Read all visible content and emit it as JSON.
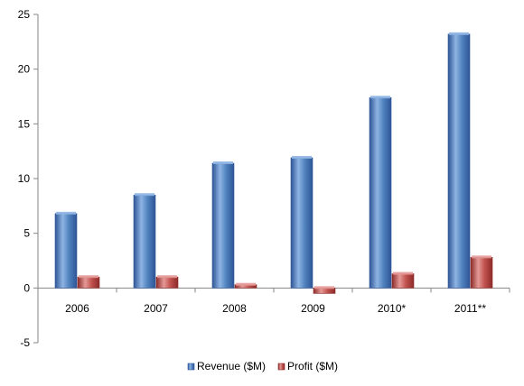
{
  "chart_data": {
    "type": "bar",
    "categories": [
      "2006",
      "2007",
      "2008",
      "2009",
      "2010*",
      "2011**"
    ],
    "series": [
      {
        "name": "Revenue ($M)",
        "values": [
          6.8,
          8.5,
          11.4,
          11.9,
          17.4,
          23.2
        ]
      },
      {
        "name": "Profit ($M)",
        "values": [
          1.0,
          1.0,
          0.3,
          -0.5,
          1.3,
          2.8
        ]
      }
    ],
    "ylim": [
      -5,
      25
    ],
    "yticks": [
      -5,
      0,
      5,
      10,
      15,
      20,
      25
    ],
    "ytick_labels": [
      "-5",
      "0",
      "5",
      "10",
      "15",
      "20",
      "25"
    ],
    "grid": false,
    "legend_position": "bottom",
    "colors": {
      "revenue": "#4f81bd",
      "revenue_dark": "#2f5597",
      "revenue_light": "#8eb4e3",
      "profit": "#c0504d",
      "profit_dark": "#8c2b29",
      "profit_light": "#e59a98",
      "axis": "#868686"
    }
  }
}
